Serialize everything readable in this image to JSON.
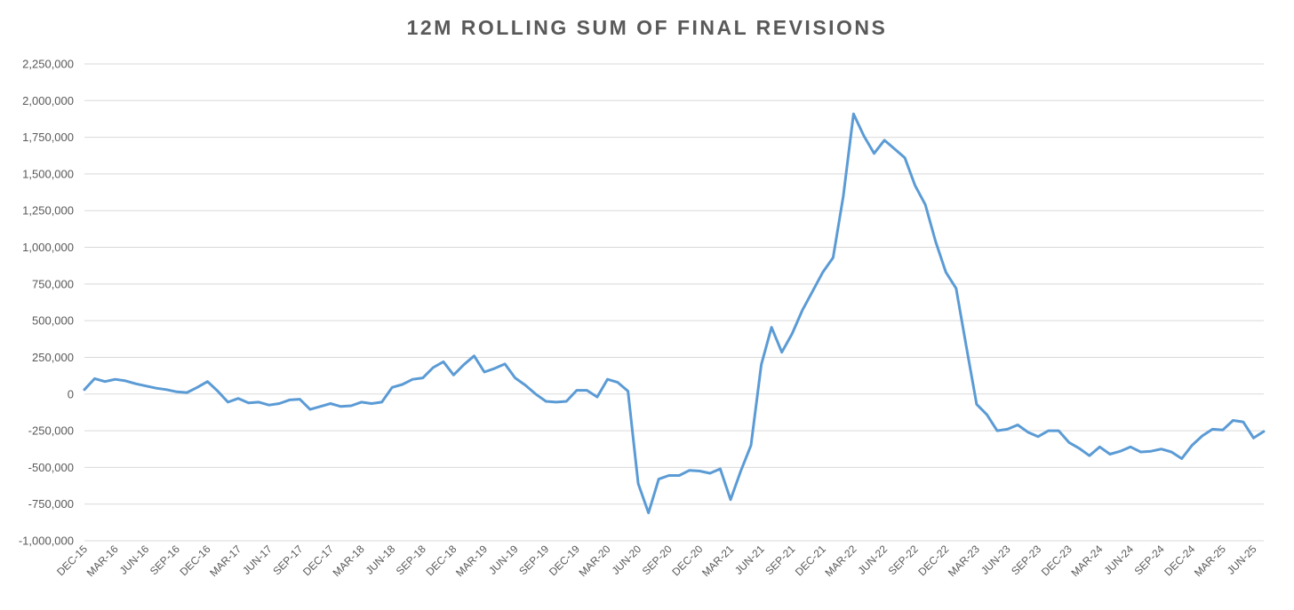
{
  "chart_data": {
    "type": "line",
    "title": "12M ROLLING SUM OF FINAL REVISIONS",
    "xlabel": "",
    "ylabel": "",
    "ylim": [
      -1000000,
      2250000
    ],
    "y_ticks": [
      "-1,000,000",
      "-750,000",
      "-500,000",
      "-250,000",
      "0",
      "250,000",
      "500,000",
      "750,000",
      "1,000,000",
      "1,250,000",
      "1,500,000",
      "1,750,000",
      "2,000,000",
      "2,250,000"
    ],
    "x_tick_labels": [
      "DEC-15",
      "MAR-16",
      "JUN-16",
      "SEP-16",
      "DEC-16",
      "MAR-17",
      "JUN-17",
      "SEP-17",
      "DEC-17",
      "MAR-18",
      "JUN-18",
      "SEP-18",
      "DEC-18",
      "MAR-19",
      "JUN-19",
      "SEP-19",
      "DEC-19",
      "MAR-20",
      "JUN-20",
      "SEP-20",
      "DEC-20",
      "MAR-21",
      "JUN-21",
      "SEP-21",
      "DEC-21",
      "MAR-22",
      "JUN-22",
      "SEP-22",
      "DEC-22",
      "MAR-23",
      "JUN-23",
      "SEP-23",
      "DEC-23",
      "MAR-24",
      "JUN-24",
      "SEP-24",
      "DEC-24",
      "MAR-25",
      "JUN-25"
    ],
    "grid": true,
    "legend": "none",
    "line_color": "#5B9BD5",
    "series": [
      {
        "name": "",
        "values": [
          30000,
          105000,
          85000,
          100000,
          90000,
          70000,
          55000,
          40000,
          30000,
          15000,
          10000,
          45000,
          85000,
          20000,
          -55000,
          -30000,
          -60000,
          -55000,
          -75000,
          -65000,
          -40000,
          -35000,
          -105000,
          -85000,
          -65000,
          -85000,
          -80000,
          -55000,
          -65000,
          -55000,
          45000,
          65000,
          100000,
          110000,
          180000,
          220000,
          130000,
          200000,
          260000,
          150000,
          175000,
          205000,
          110000,
          60000,
          0,
          -50000,
          -55000,
          -50000,
          25000,
          25000,
          -20000,
          100000,
          80000,
          20000,
          -610000,
          -810000,
          -580000,
          -555000,
          -555000,
          -520000,
          -525000,
          -540000,
          -510000,
          -720000,
          -525000,
          -350000,
          200000,
          455000,
          285000,
          410000,
          570000,
          700000,
          830000,
          930000,
          1350000,
          1910000,
          1760000,
          1640000,
          1730000,
          1670000,
          1610000,
          1420000,
          1290000,
          1040000,
          830000,
          720000,
          320000,
          -70000,
          -140000,
          -250000,
          -240000,
          -210000,
          -260000,
          -290000,
          -250000,
          -250000,
          -330000,
          -370000,
          -420000,
          -360000,
          -410000,
          -390000,
          -360000,
          -395000,
          -390000,
          -375000,
          -395000,
          -440000,
          -350000,
          -285000,
          -240000,
          -245000,
          -180000,
          -190000,
          -300000,
          -255000
        ]
      }
    ]
  }
}
